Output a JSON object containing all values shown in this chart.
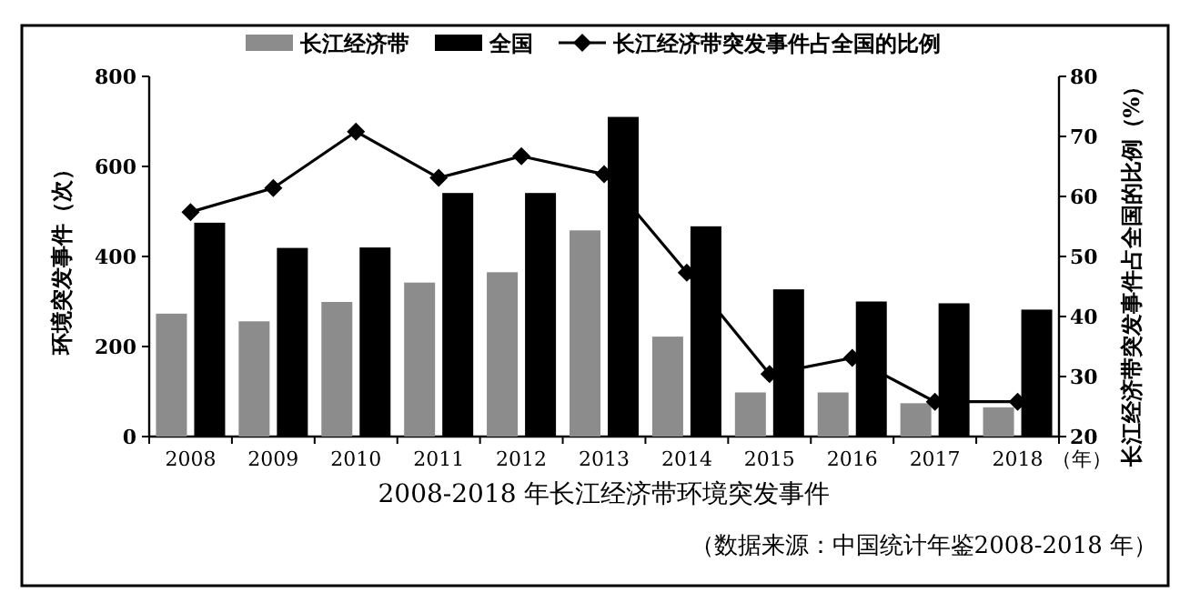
{
  "chart_data": {
    "type": "bar",
    "title": "2008-2018 年长江经济带环境突发事件",
    "xlabel": "（年）",
    "ylabel": "环境突发事件（次）",
    "y2label": "长江经济带突发事件占全国的比例（%）",
    "annotations": [
      "（数据来源：中国统计年鉴2008-2018 年）"
    ],
    "categories": [
      "2008",
      "2009",
      "2010",
      "2011",
      "2012",
      "2013",
      "2014",
      "2015",
      "2016",
      "2017",
      "2018"
    ],
    "series": [
      {
        "name": "长江经济带",
        "color": "#8c8c8c",
        "values": [
          273,
          256,
          299,
          342,
          365,
          458,
          222,
          98,
          98,
          74,
          65
        ]
      },
      {
        "name": "全国",
        "color": "#000000",
        "values": [
          475,
          419,
          420,
          541,
          541,
          710,
          467,
          327,
          300,
          296,
          282
        ]
      },
      {
        "name": "长江经济带突发事件占全国的比例",
        "type": "line",
        "axis": "y2",
        "color": "#000000",
        "marker": "diamond",
        "values": [
          57.4,
          61.4,
          70.8,
          63.1,
          66.7,
          63.7,
          47.3,
          30.4,
          33.1,
          25.8,
          25.8
        ]
      }
    ],
    "ylim": [
      0,
      800
    ],
    "yticks": [
      0,
      200,
      400,
      600,
      800
    ],
    "y2lim": [
      20,
      80
    ],
    "y2ticks": [
      20,
      30,
      40,
      50,
      60,
      70,
      80
    ],
    "grid": false,
    "legend": "top"
  }
}
